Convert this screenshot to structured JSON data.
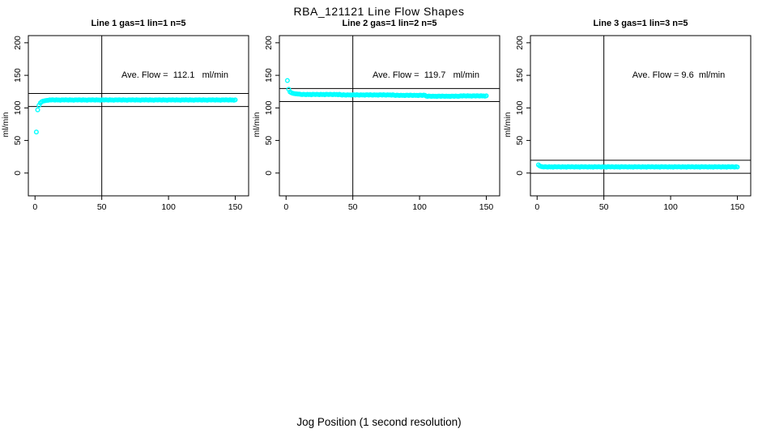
{
  "figure": {
    "title": "RBA_121121  Line Flow Shapes",
    "xlabel": "Jog Position (1 second resolution)",
    "background": "#ffffff",
    "axis_color": "#000000",
    "marker_color": "#00ffff"
  },
  "chart_data": [
    {
      "type": "scatter",
      "title": "Line 1 gas=1 lin=1 n=5",
      "ylabel": "ml/min",
      "annotation": "Ave. Flow =  112.1   ml/min",
      "ave_flow": 112.1,
      "xticks": [
        0,
        50,
        100,
        150
      ],
      "yticks": [
        0,
        50,
        100,
        150,
        200
      ],
      "xlim": [
        -5,
        160
      ],
      "ylim": [
        -35,
        211
      ],
      "vline_x": 50,
      "hlines": [
        102.1,
        122.1
      ],
      "x_start": 1,
      "marker_color": "#00ffff",
      "y": [
        63,
        97,
        104,
        107.5,
        109.5,
        110.4,
        110.9,
        111.3,
        111.6,
        111.8,
        112.4,
        112.0,
        112.6,
        112.2,
        111.9,
        112.5,
        112.1,
        112.3,
        111.8,
        112.45,
        112.4,
        112.0,
        112.6,
        112.2,
        111.9,
        112.5,
        112.1,
        112.3,
        111.8,
        112.45,
        112.4,
        112.0,
        112.6,
        112.2,
        111.9,
        112.5,
        112.1,
        112.3,
        111.8,
        112.45,
        112.4,
        112.0,
        112.6,
        112.2,
        111.9,
        112.5,
        112.1,
        112.3,
        111.8,
        112.45,
        112.4,
        112.0,
        112.6,
        112.2,
        111.9,
        112.5,
        112.1,
        112.3,
        111.8,
        112.45,
        112.4,
        112.0,
        112.6,
        112.2,
        111.9,
        112.5,
        112.1,
        112.3,
        111.8,
        112.45,
        112.4,
        112.0,
        112.6,
        112.2,
        111.9,
        112.5,
        112.1,
        112.3,
        111.8,
        112.45,
        112.4,
        112.0,
        112.6,
        112.2,
        111.9,
        112.5,
        112.1,
        112.3,
        111.8,
        112.45,
        112.4,
        112.0,
        112.6,
        112.2,
        111.9,
        112.5,
        112.1,
        112.3,
        111.8,
        112.45,
        112.4,
        112.0,
        112.6,
        112.2,
        111.9,
        112.5,
        112.1,
        112.3,
        111.8,
        112.45,
        112.4,
        112.0,
        112.6,
        112.2,
        111.9,
        112.5,
        112.1,
        112.3,
        111.8,
        112.45,
        112.4,
        112.0,
        112.6,
        112.2,
        111.9,
        112.5,
        112.1,
        112.3,
        111.8,
        112.45,
        112.4,
        112.0,
        112.6,
        112.2,
        111.9,
        112.5,
        112.1,
        112.3,
        111.8,
        112.45,
        112.4,
        112.0,
        112.6,
        112.2,
        111.9,
        112.5,
        112.1,
        112.3,
        111.8,
        112.45
      ]
    },
    {
      "type": "scatter",
      "title": "Line 2 gas=1 lin=2 n=5",
      "ylabel": "ml/min",
      "annotation": "Ave. Flow =  119.7   ml/min",
      "ave_flow": 119.7,
      "xticks": [
        0,
        50,
        100,
        150
      ],
      "yticks": [
        0,
        50,
        100,
        150,
        200
      ],
      "xlim": [
        -5,
        160
      ],
      "ylim": [
        -35,
        211
      ],
      "vline_x": 50,
      "hlines": [
        109.7,
        129.7
      ],
      "x_start": 1,
      "marker_color": "#00ffff",
      "y": [
        142,
        128.5,
        124.5,
        123.2,
        122.5,
        122.0,
        121.7,
        121.5,
        121.3,
        121.2,
        120.8,
        120.4,
        121.0,
        120.6,
        120.3,
        120.9,
        120.5,
        120.7,
        120.2,
        120.85,
        120.8,
        120.4,
        121.0,
        120.6,
        120.3,
        120.9,
        120.5,
        120.7,
        120.2,
        120.85,
        120.8,
        120.4,
        121.0,
        120.6,
        120.3,
        120.9,
        120.5,
        120.7,
        120.2,
        120.85,
        120.1,
        119.7,
        120.3,
        119.9,
        119.6,
        120.2,
        119.8,
        120.0,
        119.5,
        120.15,
        120.1,
        119.7,
        120.3,
        119.9,
        119.6,
        120.2,
        119.8,
        120.0,
        119.5,
        120.15,
        120.1,
        119.7,
        120.3,
        119.9,
        119.6,
        120.2,
        119.8,
        120.0,
        119.5,
        120.15,
        120.1,
        119.7,
        120.3,
        119.9,
        119.6,
        120.2,
        119.8,
        120.0,
        119.5,
        120.15,
        119.5,
        119.1,
        119.7,
        119.3,
        119.0,
        119.6,
        119.2,
        119.4,
        118.9,
        119.55,
        119.5,
        119.1,
        119.7,
        119.3,
        119.0,
        119.6,
        119.2,
        119.4,
        118.9,
        119.55,
        119.5,
        119.1,
        119.7,
        119.3,
        118.1,
        117.7,
        118.3,
        117.9,
        117.6,
        118.2,
        117.8,
        118.0,
        117.5,
        118.15,
        118.1,
        117.7,
        118.3,
        117.9,
        117.6,
        118.2,
        117.8,
        118.0,
        117.5,
        118.15,
        118.1,
        117.7,
        118.3,
        117.9,
        117.6,
        118.2,
        118.6,
        118.2,
        118.8,
        118.4,
        118.1,
        118.7,
        118.3,
        118.5,
        118.0,
        118.65,
        118.6,
        118.2,
        118.8,
        118.4,
        118.1,
        118.7,
        118.3,
        118.5,
        118.0,
        118.65
      ]
    },
    {
      "type": "scatter",
      "title": "Line 3 gas=1 lin=3 n=5",
      "ylabel": "ml/min",
      "annotation": "Ave. Flow = 9.6  ml/min",
      "ave_flow": 9.6,
      "xticks": [
        0,
        50,
        100,
        150
      ],
      "yticks": [
        0,
        50,
        100,
        150,
        200
      ],
      "xlim": [
        -5,
        160
      ],
      "ylim": [
        -35,
        211
      ],
      "vline_x": 50,
      "hlines": [
        -0.4,
        19.6
      ],
      "x_start": 1,
      "marker_color": "#00ffff",
      "y": [
        12.5,
        10.8,
        10.0,
        9.6,
        9.2,
        9.8,
        9.4,
        9.1,
        9.7,
        9.3,
        9.5,
        9.0,
        9.65,
        9.6,
        9.2,
        9.8,
        9.4,
        9.1,
        9.7,
        9.3,
        9.5,
        9.0,
        9.65,
        9.6,
        9.2,
        9.8,
        9.4,
        9.1,
        9.7,
        9.3,
        9.5,
        9.0,
        9.65,
        9.6,
        9.2,
        9.8,
        9.4,
        9.1,
        9.7,
        9.3,
        9.5,
        9.0,
        9.65,
        9.6,
        9.2,
        9.8,
        9.4,
        9.1,
        9.7,
        9.3,
        9.5,
        9.0,
        9.65,
        9.6,
        9.2,
        9.8,
        9.4,
        9.1,
        9.7,
        9.3,
        9.5,
        9.0,
        9.65,
        9.6,
        9.2,
        9.8,
        9.4,
        9.1,
        9.7,
        9.3,
        9.5,
        9.0,
        9.65,
        9.6,
        9.2,
        9.8,
        9.4,
        9.1,
        9.7,
        9.3,
        9.5,
        9.0,
        9.65,
        9.6,
        9.2,
        9.8,
        9.4,
        9.1,
        9.7,
        9.3,
        9.5,
        9.0,
        9.65,
        9.6,
        9.2,
        9.8,
        9.4,
        9.1,
        9.7,
        9.3,
        9.5,
        9.0,
        9.65,
        9.6,
        9.2,
        9.8,
        9.4,
        9.1,
        9.7,
        9.3,
        9.5,
        9.0,
        9.65,
        9.6,
        9.2,
        9.8,
        9.4,
        9.1,
        9.7,
        9.3,
        9.5,
        9.0,
        9.65,
        9.6,
        9.2,
        9.8,
        9.4,
        9.1,
        9.7,
        9.3,
        9.5,
        9.0,
        9.65,
        9.6,
        9.2,
        9.8,
        9.4,
        9.1,
        9.7,
        9.3,
        9.5,
        9.0,
        9.65,
        9.6,
        9.2,
        9.8,
        9.4,
        9.1,
        9.7,
        9.3
      ]
    }
  ]
}
